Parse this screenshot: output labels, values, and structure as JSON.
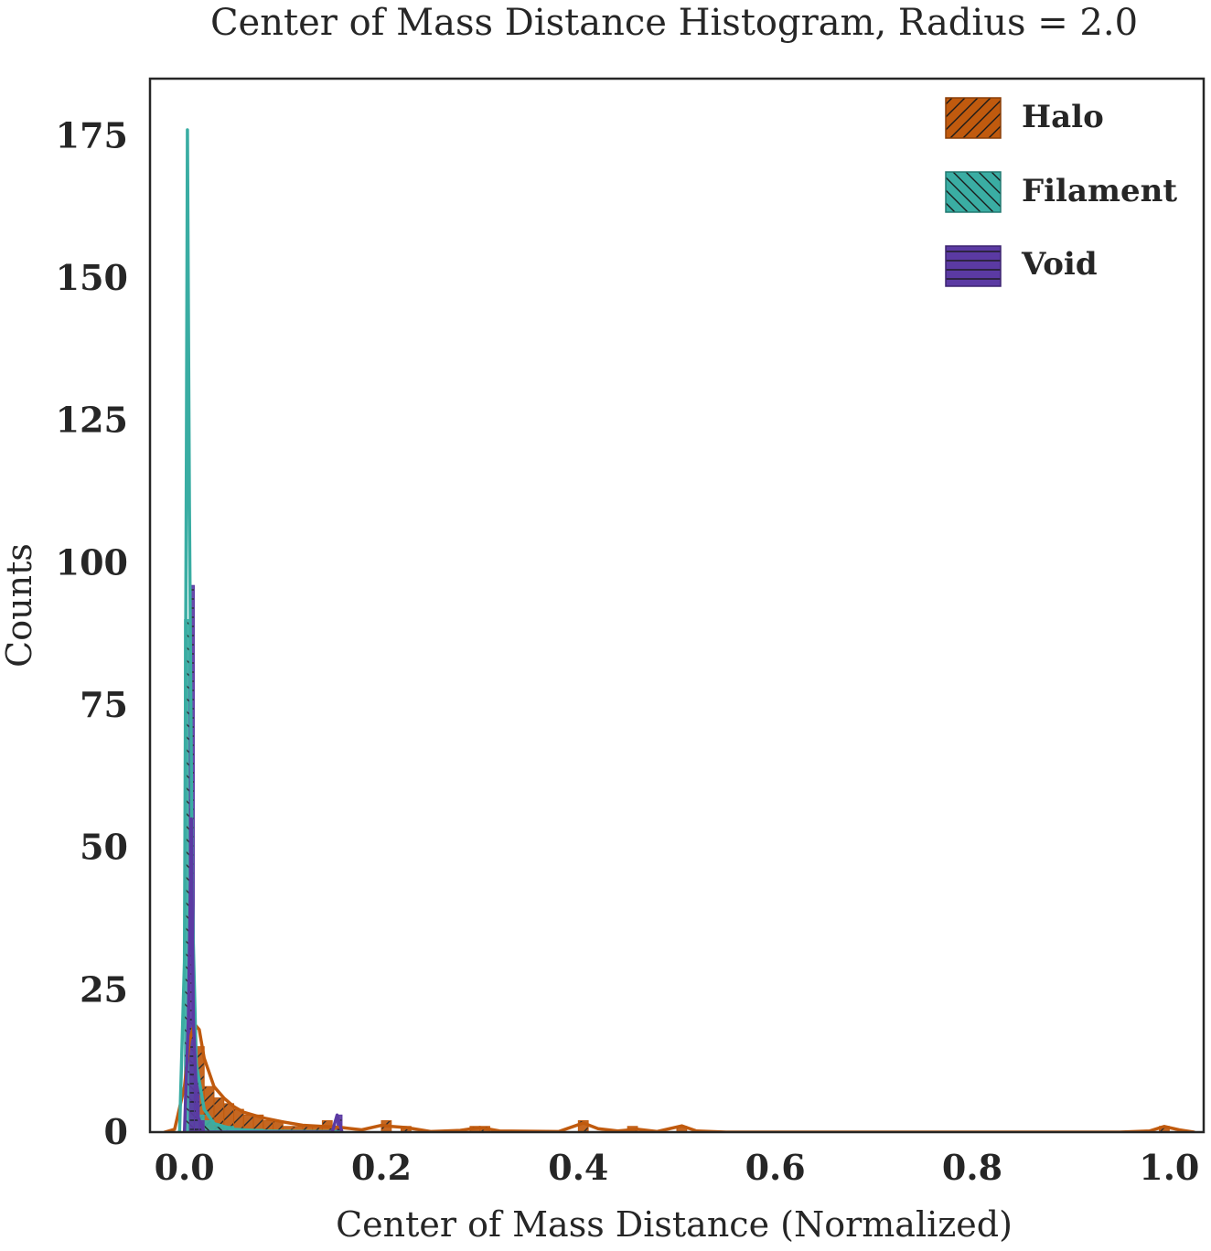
{
  "chart_data": {
    "type": "histogram",
    "title": "Center of Mass Distance Histogram, Radius = 2.0",
    "xlabel": "Center of Mass Distance (Normalized)",
    "ylabel": "Counts",
    "xlim": [
      -0.035,
      1.035
    ],
    "ylim": [
      0,
      185
    ],
    "xticks": [
      "0.0",
      "0.2",
      "0.4",
      "0.6",
      "0.8",
      "1.0"
    ],
    "xtick_values": [
      0.0,
      0.2,
      0.4,
      0.6,
      0.8,
      1.0
    ],
    "yticks": [
      "0",
      "25",
      "50",
      "75",
      "100",
      "125",
      "150",
      "175"
    ],
    "ytick_values": [
      0,
      25,
      50,
      75,
      100,
      125,
      150,
      175
    ],
    "grid": false,
    "legend_position": "top-right",
    "series": [
      {
        "name": "Halo",
        "color": "#c05a0e",
        "hatch": "diagonal-forward",
        "bins": [
          [
            0.005,
            0.01,
            9
          ],
          [
            0.01,
            0.02,
            15
          ],
          [
            0.02,
            0.03,
            8
          ],
          [
            0.03,
            0.04,
            6
          ],
          [
            0.04,
            0.05,
            5
          ],
          [
            0.05,
            0.06,
            4
          ],
          [
            0.06,
            0.07,
            3
          ],
          [
            0.07,
            0.08,
            3
          ],
          [
            0.08,
            0.09,
            2
          ],
          [
            0.09,
            0.1,
            2
          ],
          [
            0.1,
            0.11,
            1
          ],
          [
            0.11,
            0.12,
            1
          ],
          [
            0.12,
            0.13,
            1
          ],
          [
            0.13,
            0.14,
            1
          ],
          [
            0.14,
            0.15,
            2
          ],
          [
            0.15,
            0.16,
            1
          ],
          [
            0.2,
            0.21,
            2
          ],
          [
            0.22,
            0.23,
            1
          ],
          [
            0.29,
            0.3,
            1
          ],
          [
            0.3,
            0.31,
            1
          ],
          [
            0.4,
            0.41,
            2
          ],
          [
            0.45,
            0.46,
            1
          ],
          [
            0.5,
            0.51,
            1
          ],
          [
            0.99,
            1.0,
            1
          ]
        ],
        "kde": [
          [
            -0.02,
            0
          ],
          [
            -0.01,
            0.5
          ],
          [
            0.0,
            8
          ],
          [
            0.005,
            16
          ],
          [
            0.01,
            19
          ],
          [
            0.015,
            18
          ],
          [
            0.02,
            13
          ],
          [
            0.03,
            8
          ],
          [
            0.04,
            6
          ],
          [
            0.05,
            4.5
          ],
          [
            0.06,
            3.5
          ],
          [
            0.08,
            2.5
          ],
          [
            0.1,
            1.8
          ],
          [
            0.12,
            1.2
          ],
          [
            0.14,
            1.0
          ],
          [
            0.16,
            0.8
          ],
          [
            0.18,
            0.4
          ],
          [
            0.2,
            1.2
          ],
          [
            0.21,
            1.0
          ],
          [
            0.225,
            0.8
          ],
          [
            0.25,
            0.1
          ],
          [
            0.28,
            0.3
          ],
          [
            0.3,
            0.8
          ],
          [
            0.32,
            0.2
          ],
          [
            0.38,
            0.1
          ],
          [
            0.405,
            1.6
          ],
          [
            0.42,
            0.6
          ],
          [
            0.44,
            0.2
          ],
          [
            0.46,
            0.5
          ],
          [
            0.48,
            0.1
          ],
          [
            0.505,
            1.1
          ],
          [
            0.52,
            0.2
          ],
          [
            0.55,
            0
          ],
          [
            0.95,
            0
          ],
          [
            0.98,
            0.2
          ],
          [
            0.995,
            1.0
          ],
          [
            1.01,
            0.4
          ],
          [
            1.025,
            0
          ]
        ]
      },
      {
        "name": "Filament",
        "color": "#3aada3",
        "hatch": "diagonal-backward",
        "bins": [
          [
            0.0,
            0.005,
            90
          ],
          [
            0.005,
            0.01,
            20
          ],
          [
            0.01,
            0.015,
            6
          ],
          [
            0.015,
            0.02,
            3
          ],
          [
            0.02,
            0.03,
            2
          ],
          [
            0.03,
            0.05,
            1
          ],
          [
            0.05,
            0.08,
            0.5
          ],
          [
            0.08,
            0.16,
            0.3
          ]
        ],
        "kde": [
          [
            -0.005,
            0
          ],
          [
            0.0,
            30
          ],
          [
            0.002,
            120
          ],
          [
            0.003,
            176
          ],
          [
            0.005,
            110
          ],
          [
            0.008,
            40
          ],
          [
            0.012,
            12
          ],
          [
            0.02,
            4
          ],
          [
            0.03,
            1.5
          ],
          [
            0.05,
            0.5
          ],
          [
            0.08,
            0.2
          ],
          [
            0.12,
            0.1
          ],
          [
            0.16,
            0
          ]
        ]
      },
      {
        "name": "Void",
        "color": "#5b3aa3",
        "hatch": "horizontal",
        "bins": [
          [
            0.005,
            0.01,
            96
          ],
          [
            0.01,
            0.015,
            10
          ],
          [
            0.015,
            0.02,
            2
          ],
          [
            0.155,
            0.16,
            3
          ]
        ],
        "kde": [
          [
            0.0,
            0
          ],
          [
            0.004,
            20
          ],
          [
            0.007,
            55
          ],
          [
            0.009,
            20
          ],
          [
            0.013,
            3
          ],
          [
            0.02,
            0
          ],
          [
            0.15,
            0
          ],
          [
            0.155,
            3
          ],
          [
            0.16,
            0
          ]
        ]
      }
    ]
  }
}
